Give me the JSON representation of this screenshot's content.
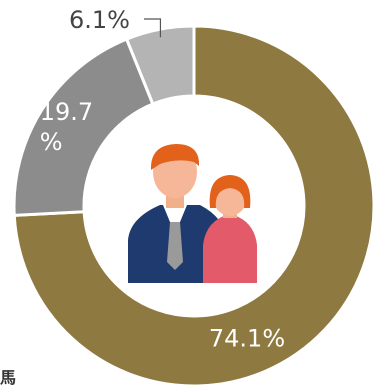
{
  "chart_data": {
    "type": "pie",
    "variant": "donut",
    "categories": [
      "",
      "",
      ""
    ],
    "values": [
      74.1,
      19.7,
      6.1
    ],
    "labels": [
      "74.1%",
      "19.7 %",
      "6.1%"
    ],
    "colors": [
      "#8e7a40",
      "#8c8c8c",
      "#b4b4b4"
    ],
    "slice_separator_color": "#ffffff",
    "title": "",
    "legend": "none",
    "center_icon": "people-icon"
  },
  "fragment_text": "馬"
}
